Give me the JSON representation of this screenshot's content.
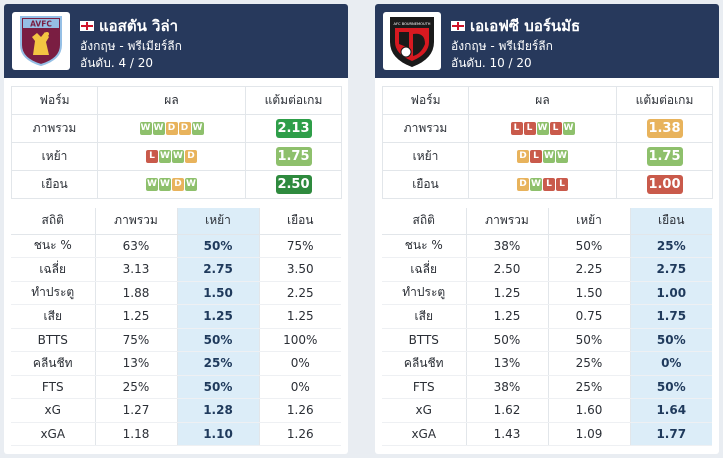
{
  "teams": [
    {
      "name": "แอสตัน วิล่า",
      "logo_icon": "aston-villa-crest-icon",
      "logo_text": "AVFC",
      "league": "อังกฤษ - พรีเมียร์ลีก",
      "rank": "อันดับ. 4 / 20",
      "form_headers": {
        "label": "ฟอร์ม",
        "results": "ผล",
        "ppg": "แต้มต่อเกม"
      },
      "form_rows": [
        {
          "label": "ภาพรวม",
          "results": [
            "W",
            "W",
            "D",
            "D",
            "W"
          ],
          "ppg": "2.13",
          "ppg_color": "#2e9e49"
        },
        {
          "label": "เหย้า",
          "results": [
            "L",
            "W",
            "W",
            "D"
          ],
          "ppg": "1.75",
          "ppg_color": "#8ec06c"
        },
        {
          "label": "เยือน",
          "results": [
            "W",
            "W",
            "D",
            "W"
          ],
          "ppg": "2.50",
          "ppg_color": "#2e8a3e"
        }
      ],
      "stats_headers": [
        "สถิติ",
        "ภาพรวม",
        "เหย้า",
        "เยือน"
      ],
      "highlight_col": 2,
      "stats_rows": [
        [
          "ชนะ %",
          "63%",
          "50%",
          "75%"
        ],
        [
          "เฉลี่ย",
          "3.13",
          "2.75",
          "3.50"
        ],
        [
          "ทำประตู",
          "1.88",
          "1.50",
          "2.25"
        ],
        [
          "เสีย",
          "1.25",
          "1.25",
          "1.25"
        ],
        [
          "BTTS",
          "75%",
          "50%",
          "100%"
        ],
        [
          "คลีนชีท",
          "13%",
          "25%",
          "0%"
        ],
        [
          "FTS",
          "25%",
          "50%",
          "0%"
        ],
        [
          "xG",
          "1.27",
          "1.28",
          "1.26"
        ],
        [
          "xGA",
          "1.18",
          "1.10",
          "1.26"
        ]
      ]
    },
    {
      "name": "เอเอฟซี บอร์นมัธ",
      "logo_icon": "bournemouth-crest-icon",
      "logo_text": "AFC BOURNEMOUTH",
      "league": "อังกฤษ - พรีเมียร์ลีก",
      "rank": "อันดับ. 10 / 20",
      "form_headers": {
        "label": "ฟอร์ม",
        "results": "ผล",
        "ppg": "แต้มต่อเกม"
      },
      "form_rows": [
        {
          "label": "ภาพรวม",
          "results": [
            "L",
            "L",
            "W",
            "L",
            "W"
          ],
          "ppg": "1.38",
          "ppg_color": "#e8b35c"
        },
        {
          "label": "เหย้า",
          "results": [
            "D",
            "L",
            "W",
            "W"
          ],
          "ppg": "1.75",
          "ppg_color": "#8ec06c"
        },
        {
          "label": "เยือน",
          "results": [
            "D",
            "W",
            "L",
            "L"
          ],
          "ppg": "1.00",
          "ppg_color": "#c95a4b"
        }
      ],
      "stats_headers": [
        "สถิติ",
        "ภาพรวม",
        "เหย้า",
        "เยือน"
      ],
      "highlight_col": 3,
      "stats_rows": [
        [
          "ชนะ %",
          "38%",
          "50%",
          "25%"
        ],
        [
          "เฉลี่ย",
          "2.50",
          "2.25",
          "2.75"
        ],
        [
          "ทำประตู",
          "1.25",
          "1.50",
          "1.00"
        ],
        [
          "เสีย",
          "1.25",
          "0.75",
          "1.75"
        ],
        [
          "BTTS",
          "50%",
          "50%",
          "50%"
        ],
        [
          "คลีนชีท",
          "13%",
          "25%",
          "0%"
        ],
        [
          "FTS",
          "38%",
          "25%",
          "50%"
        ],
        [
          "xG",
          "1.62",
          "1.60",
          "1.64"
        ],
        [
          "xGA",
          "1.43",
          "1.09",
          "1.77"
        ]
      ]
    }
  ]
}
